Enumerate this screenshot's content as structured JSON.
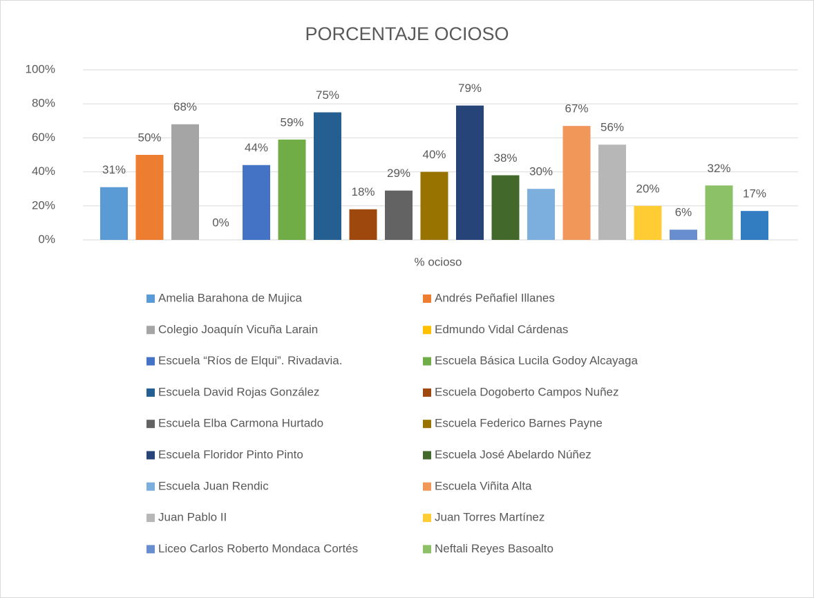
{
  "chart_data": {
    "type": "bar",
    "title": "PORCENTAJE OCIOSO",
    "categories": [
      "% ocioso"
    ],
    "ylim": [
      0,
      100
    ],
    "yticks": [
      {
        "value": 0,
        "label": "0%"
      },
      {
        "value": 20,
        "label": "20%"
      },
      {
        "value": 40,
        "label": "40%"
      },
      {
        "value": 60,
        "label": "60%"
      },
      {
        "value": 80,
        "label": "80%"
      },
      {
        "value": 100,
        "label": "100%"
      }
    ],
    "grid": true,
    "legend": "bottom",
    "series": [
      {
        "name": "Amelia Barahona de Mujica",
        "color": "#5b9bd5",
        "values": [
          31
        ],
        "value_labels": [
          "31%"
        ]
      },
      {
        "name": "Andrés Peñafiel Illanes",
        "color": "#ed7d31",
        "values": [
          50
        ],
        "value_labels": [
          "50%"
        ]
      },
      {
        "name": "Colegio Joaquín Vicuña Larain",
        "color": "#a5a5a5",
        "values": [
          68
        ],
        "value_labels": [
          "68%"
        ]
      },
      {
        "name": "Edmundo Vidal Cárdenas",
        "color": "#ffc000",
        "values": [
          0
        ],
        "value_labels": [
          "0%"
        ]
      },
      {
        "name": "Escuela “Ríos de Elqui”. Rivadavia.",
        "color": "#4472c4",
        "values": [
          44
        ],
        "value_labels": [
          "44%"
        ]
      },
      {
        "name": "Escuela Básica Lucila Godoy Alcayaga",
        "color": "#70ad47",
        "values": [
          59
        ],
        "value_labels": [
          "59%"
        ]
      },
      {
        "name": "Escuela David Rojas González",
        "color": "#255e91",
        "values": [
          75
        ],
        "value_labels": [
          "75%"
        ]
      },
      {
        "name": "Escuela Dogoberto Campos Nuñez",
        "color": "#9e480e",
        "values": [
          18
        ],
        "value_labels": [
          "18%"
        ]
      },
      {
        "name": "Escuela Elba Carmona Hurtado",
        "color": "#636363",
        "values": [
          29
        ],
        "value_labels": [
          "29%"
        ]
      },
      {
        "name": "Escuela Federico Barnes Payne",
        "color": "#997300",
        "values": [
          40
        ],
        "value_labels": [
          "40%"
        ]
      },
      {
        "name": "Escuela Floridor Pinto Pinto",
        "color": "#264478",
        "values": [
          79
        ],
        "value_labels": [
          "79%"
        ]
      },
      {
        "name": "Escuela José Abelardo Núñez",
        "color": "#43682b",
        "values": [
          38
        ],
        "value_labels": [
          "38%"
        ]
      },
      {
        "name": "Escuela Juan Rendic",
        "color": "#7cafdd",
        "values": [
          30
        ],
        "value_labels": [
          "30%"
        ]
      },
      {
        "name": "Escuela Viñita Alta",
        "color": "#f1975a",
        "values": [
          67
        ],
        "value_labels": [
          "67%"
        ]
      },
      {
        "name": "Juan Pablo II",
        "color": "#b7b7b7",
        "values": [
          56
        ],
        "value_labels": [
          "56%"
        ]
      },
      {
        "name": "Juan Torres Martínez",
        "color": "#ffcd33",
        "values": [
          20
        ],
        "value_labels": [
          "20%"
        ]
      },
      {
        "name": "Liceo Carlos Roberto Mondaca Cortés",
        "color": "#698ed0",
        "values": [
          6
        ],
        "value_labels": [
          "6%"
        ]
      },
      {
        "name": "Neftali Reyes Basoalto",
        "color": "#8cc168",
        "values": [
          32
        ],
        "value_labels": [
          "32%"
        ]
      },
      {
        "color": "#327dc2",
        "values": [
          17
        ],
        "value_labels": [
          "17%"
        ]
      }
    ]
  }
}
